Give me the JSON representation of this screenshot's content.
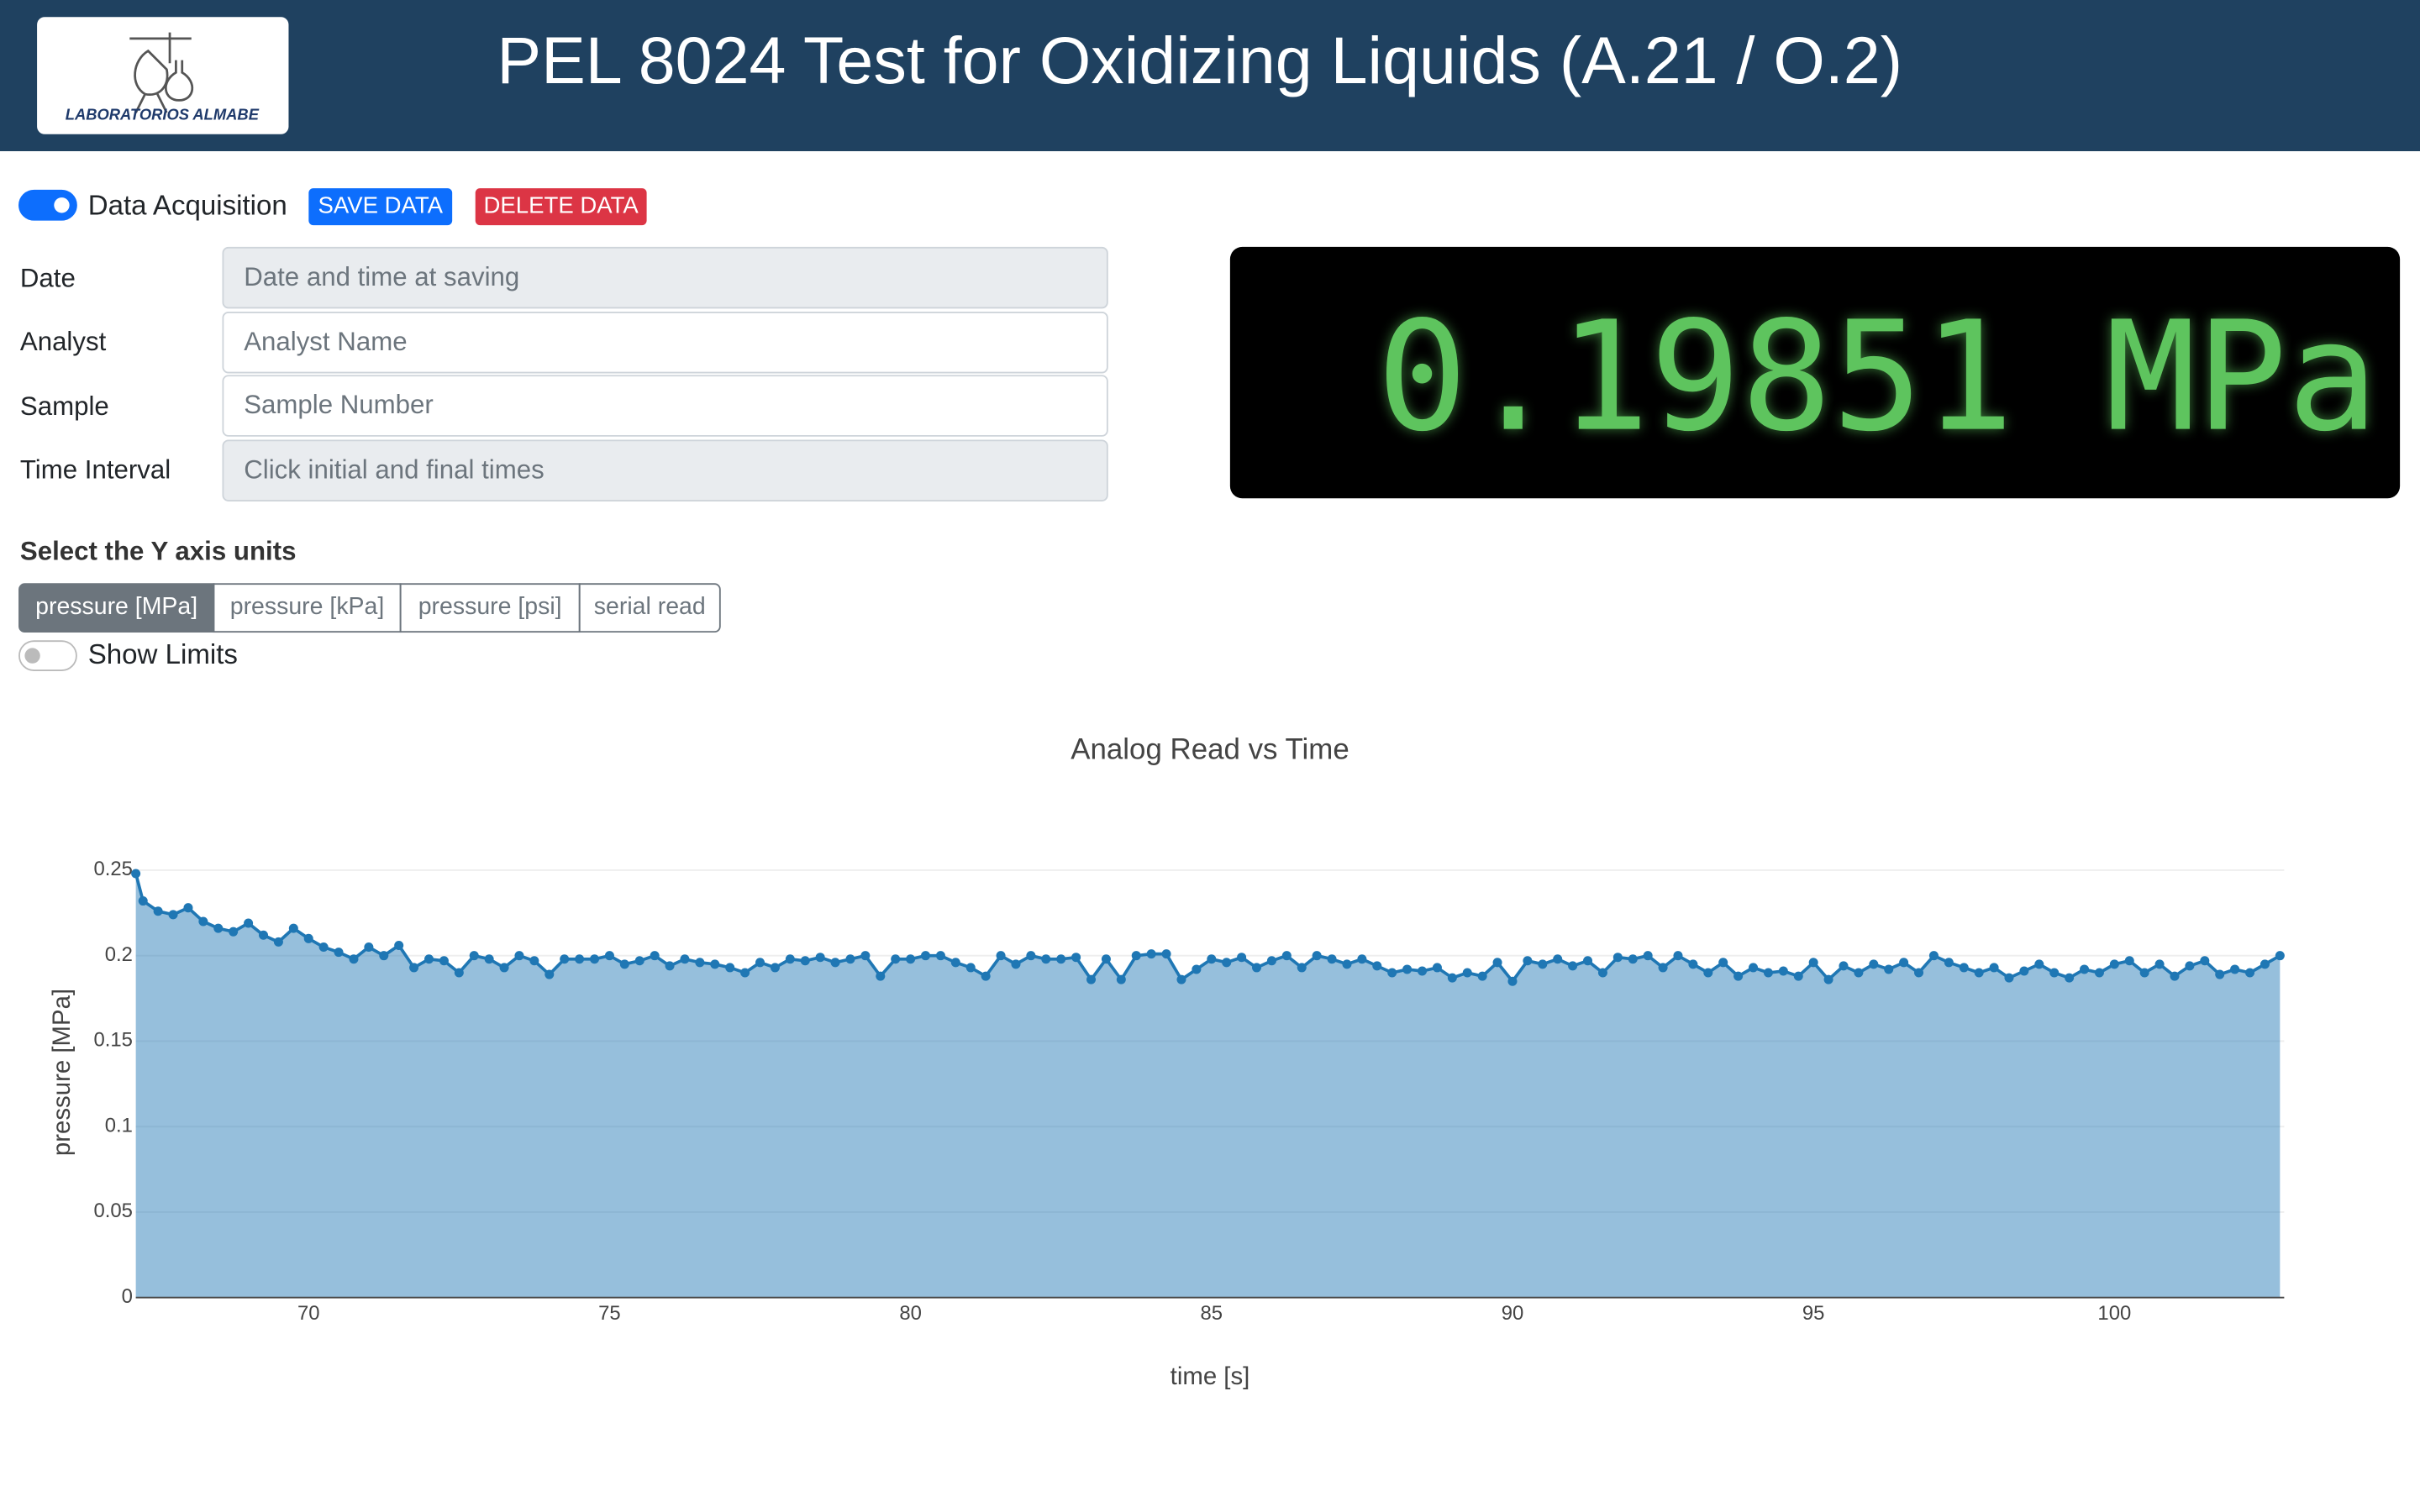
{
  "header": {
    "title": "PEL 8024 Test for Oxidizing Liquids (A.21 / O.2)",
    "logo_text": "LABORATORIOS ALMABE"
  },
  "controls": {
    "acquisition_label": "Data Acquisition",
    "save_button": "SAVE DATA",
    "delete_button": "DELETE DATA"
  },
  "form": {
    "fields": [
      {
        "label": "Date",
        "placeholder": "Date and time at saving"
      },
      {
        "label": "Analyst",
        "placeholder": "Analyst Name"
      },
      {
        "label": "Sample",
        "placeholder": "Sample Number"
      },
      {
        "label": "Time Interval",
        "placeholder": "Click initial and final times"
      }
    ]
  },
  "display": {
    "reading": "0.19851 MPa"
  },
  "units": {
    "label": "Select the Y axis units",
    "options": [
      "pressure [MPa]",
      "pressure [kPa]",
      "pressure [psi]",
      "serial read"
    ]
  },
  "limits_label": "Show Limits",
  "chart_data": {
    "type": "area",
    "title": "Analog Read vs Time",
    "x_label": "time [s]",
    "y_label": "pressure [MPa]",
    "color": "#1f77b4",
    "fill": "tozeroy",
    "grid": true,
    "xlim": [
      67.13,
      102.82
    ],
    "ylim": [
      0,
      0.25
    ],
    "xticks": [
      70,
      75,
      80,
      85,
      90,
      95,
      100
    ],
    "yticks": [
      0,
      0.05,
      0.1,
      0.15,
      0.2,
      0.25
    ],
    "x": [
      67.13,
      67.25,
      67.5,
      67.75,
      68,
      68.25,
      68.5,
      68.75,
      69,
      69.25,
      69.5,
      69.75,
      70,
      70.25,
      70.5,
      70.75,
      71,
      71.25,
      71.5,
      71.75,
      72,
      72.25,
      72.5,
      72.75,
      73,
      73.25,
      73.5,
      73.75,
      74,
      74.25,
      74.5,
      74.75,
      75,
      75.25,
      75.5,
      75.75,
      76,
      76.25,
      76.5,
      76.75,
      77,
      77.25,
      77.5,
      77.75,
      78,
      78.25,
      78.5,
      78.75,
      79,
      79.25,
      79.5,
      79.75,
      80,
      80.25,
      80.5,
      80.75,
      81,
      81.25,
      81.5,
      81.75,
      82,
      82.25,
      82.5,
      82.75,
      83,
      83.25,
      83.5,
      83.75,
      84,
      84.25,
      84.5,
      84.75,
      85,
      85.25,
      85.5,
      85.75,
      86,
      86.25,
      86.5,
      86.75,
      87,
      87.25,
      87.5,
      87.75,
      88,
      88.25,
      88.5,
      88.75,
      89,
      89.25,
      89.5,
      89.75,
      90,
      90.25,
      90.5,
      90.75,
      91,
      91.25,
      91.5,
      91.75,
      92,
      92.25,
      92.5,
      92.75,
      93,
      93.25,
      93.5,
      93.75,
      94,
      94.25,
      94.5,
      94.75,
      95,
      95.25,
      95.5,
      95.75,
      96,
      96.25,
      96.5,
      96.75,
      97,
      97.25,
      97.5,
      97.75,
      98,
      98.25,
      98.5,
      98.75,
      99,
      99.25,
      99.5,
      99.75,
      100,
      100.25,
      100.5,
      100.75,
      101,
      101.25,
      101.5,
      101.75,
      102,
      102.25,
      102.5,
      102.75
    ],
    "values": [
      0.248,
      0.232,
      0.226,
      0.224,
      0.228,
      0.22,
      0.216,
      0.214,
      0.219,
      0.212,
      0.208,
      0.216,
      0.21,
      0.205,
      0.202,
      0.198,
      0.205,
      0.2,
      0.206,
      0.193,
      0.198,
      0.197,
      0.19,
      0.2,
      0.198,
      0.193,
      0.2,
      0.197,
      0.189,
      0.198,
      0.198,
      0.198,
      0.2,
      0.195,
      0.197,
      0.2,
      0.194,
      0.198,
      0.196,
      0.195,
      0.193,
      0.19,
      0.196,
      0.193,
      0.198,
      0.197,
      0.199,
      0.196,
      0.198,
      0.2,
      0.188,
      0.198,
      0.198,
      0.2,
      0.2,
      0.196,
      0.193,
      0.188,
      0.2,
      0.195,
      0.2,
      0.198,
      0.198,
      0.199,
      0.186,
      0.198,
      0.186,
      0.2,
      0.201,
      0.201,
      0.186,
      0.192,
      0.198,
      0.196,
      0.199,
      0.193,
      0.197,
      0.2,
      0.193,
      0.2,
      0.198,
      0.195,
      0.198,
      0.194,
      0.19,
      0.192,
      0.191,
      0.193,
      0.187,
      0.19,
      0.188,
      0.196,
      0.185,
      0.197,
      0.195,
      0.198,
      0.194,
      0.197,
      0.19,
      0.199,
      0.198,
      0.2,
      0.193,
      0.2,
      0.195,
      0.19,
      0.196,
      0.188,
      0.193,
      0.19,
      0.191,
      0.188,
      0.196,
      0.186,
      0.194,
      0.19,
      0.195,
      0.192,
      0.196,
      0.19,
      0.2,
      0.196,
      0.193,
      0.19,
      0.193,
      0.187,
      0.191,
      0.195,
      0.19,
      0.187,
      0.192,
      0.19,
      0.195,
      0.197,
      0.19,
      0.195,
      0.188,
      0.194,
      0.197,
      0.189,
      0.192,
      0.19,
      0.195,
      0.2
    ]
  }
}
